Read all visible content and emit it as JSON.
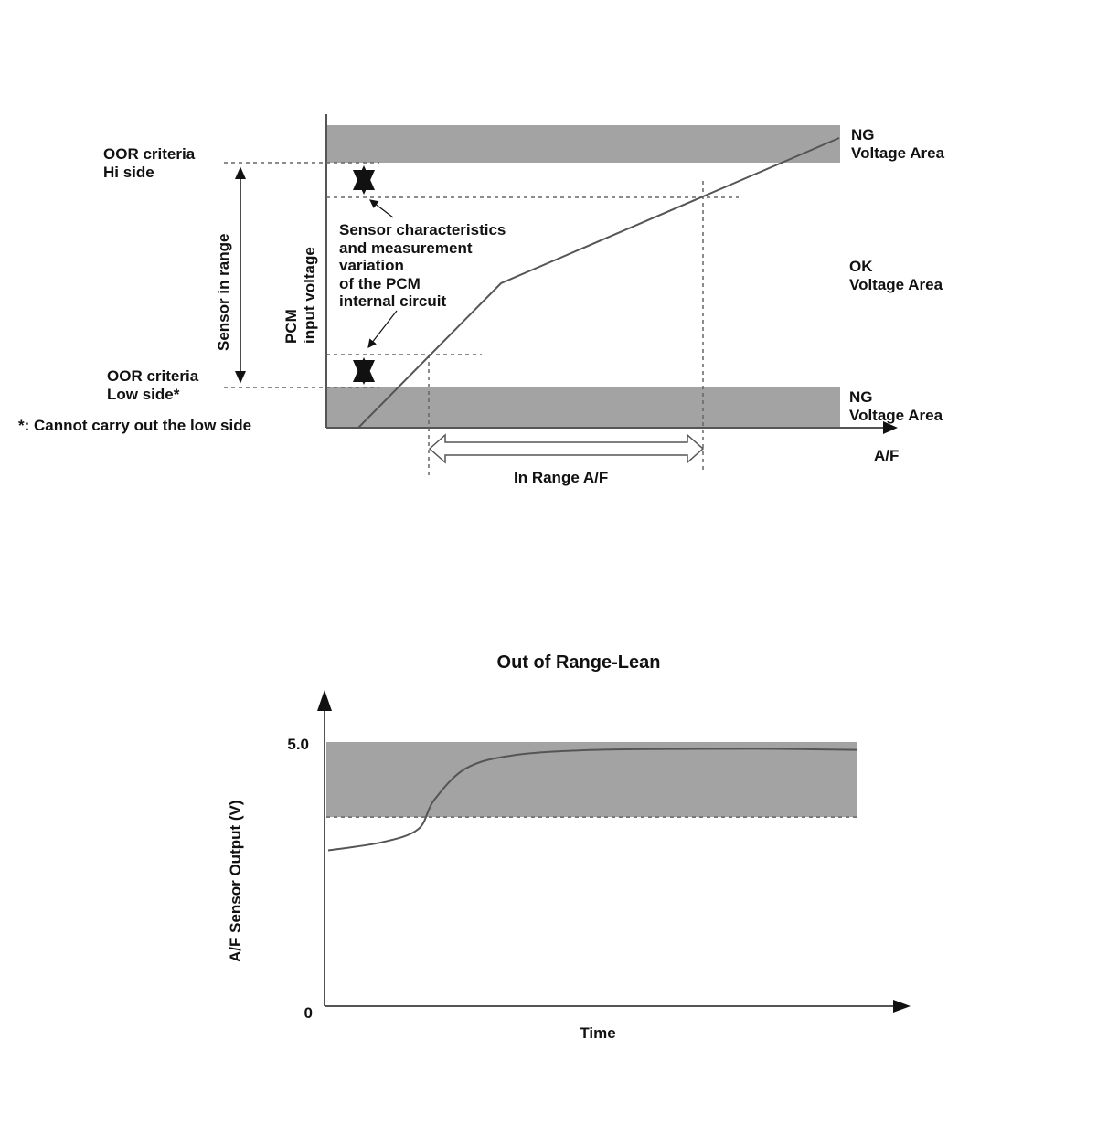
{
  "top_diagram": {
    "oor_hi": [
      "OOR criteria",
      "Hi side"
    ],
    "oor_low": [
      "OOR criteria",
      "Low side*"
    ],
    "footnote": "*: Cannot carry out the low side",
    "sensor_in_range": "Sensor in range",
    "y_axis_label": [
      "PCM",
      "input voltage"
    ],
    "annotation": [
      "Sensor characteristics",
      "and measurement",
      "variation",
      "of the PCM",
      "internal circuit"
    ],
    "ng_top": [
      "NG",
      "Voltage Area"
    ],
    "ok_area": [
      "OK",
      "Voltage Area"
    ],
    "ng_bottom": [
      "NG",
      "Voltage Area"
    ],
    "x_axis_label": "A/F",
    "in_range_label": "In Range A/F",
    "colors": {
      "band": "#a3a3a3",
      "line": "#555555"
    }
  },
  "chart_data": {
    "type": "line",
    "title": "Out of Range-Lean",
    "xlabel": "Time",
    "ylabel": "A/F Sensor Output (V)",
    "y_ticks": [
      "5.0",
      "0"
    ],
    "ylim": [
      0,
      5.0
    ],
    "shaded_region": [
      3.58,
      5.0
    ],
    "threshold": 3.58,
    "series": [
      {
        "values": [
          2.95,
          3.1,
          3.35,
          3.9,
          4.5,
          4.75,
          4.85,
          4.87,
          4.87,
          4.85
        ]
      }
    ],
    "grid": false,
    "colors": {
      "band": "#a3a3a3",
      "line": "#555555"
    }
  }
}
